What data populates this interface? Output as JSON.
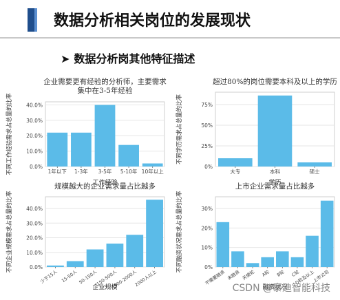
{
  "header": {
    "title": "数据分析相关岗位的发展现状"
  },
  "section": {
    "arrow": "➤",
    "heading": "数据分析岗其他特征描述"
  },
  "watermark": "CSDN @泰迪智能科技",
  "chart_data": [
    {
      "type": "bar",
      "title": "企业需要更有经验的分析师，主要需求集中在3-5年经验",
      "title_lines": [
        "企业需要更有经验的分析师，主要需求",
        "集中在3-5年经验"
      ],
      "xlabel": "工作经验",
      "ylabel": "不同工作经验需求占总量的比率",
      "categories": [
        "1年以下",
        "1-3年",
        "3-5年",
        "5-10年",
        "10年以上"
      ],
      "values": [
        0.22,
        0.22,
        0.4,
        0.14,
        0.02
      ],
      "ylim": [
        0,
        0.42
      ],
      "yticks": [
        0,
        0.1,
        0.2,
        0.3,
        0.4
      ],
      "ytick_labels": [
        "0.0%",
        "10.0%",
        "20.0%",
        "30.0%",
        "40.0%"
      ],
      "color": "#5bbbe8",
      "grid": true,
      "rotate_xticks": false
    },
    {
      "type": "bar",
      "title": "超过80%的岗位需要本科及以上的学历",
      "title_lines": [
        "超过80%的岗位需要本科及以上的学历"
      ],
      "xlabel": "学历",
      "ylabel": "不同学历需求占总量的比率",
      "categories": [
        "大专",
        "本科",
        "硕士"
      ],
      "values": [
        0.1,
        0.86,
        0.05
      ],
      "ylim": [
        0,
        0.9
      ],
      "yticks": [
        0,
        0.25,
        0.5,
        0.75
      ],
      "ytick_labels": [
        "0%",
        "25%",
        "50%",
        "75%"
      ],
      "color": "#5bbbe8",
      "grid": true,
      "rotate_xticks": false
    },
    {
      "type": "bar",
      "title": "规模越大的企业需求量占比越多",
      "title_lines": [
        "规模越大的企业需求量占比越多"
      ],
      "xlabel": "企业规模",
      "ylabel": "不同企业规模需求占总量的比率",
      "categories": [
        "少于15人",
        "15-50人",
        "50-150人",
        "150-500人",
        "500-2000人",
        "2000人以上"
      ],
      "values": [
        0.01,
        0.04,
        0.12,
        0.16,
        0.22,
        0.46
      ],
      "ylim": [
        0,
        0.48
      ],
      "yticks": [
        0,
        0.1,
        0.2,
        0.3,
        0.4
      ],
      "ytick_labels": [
        "0.0%",
        "10.0%",
        "20.0%",
        "30.0%",
        "40.0%"
      ],
      "color": "#5bbbe8",
      "grid": true,
      "rotate_xticks": true
    },
    {
      "type": "bar",
      "title": "上市企业需求量占比越多",
      "title_lines": [
        "上市企业需求量占比越多"
      ],
      "xlabel": "融资状况",
      "ylabel": "不同融资状况需求占总量的比率",
      "categories": [
        "不需要融资",
        "未融资",
        "天使轮",
        "A轮",
        "B轮",
        "C轮",
        "D轮及以上",
        "上市公司"
      ],
      "values": [
        0.23,
        0.08,
        0.02,
        0.05,
        0.08,
        0.05,
        0.16,
        0.34
      ],
      "ylim": [
        0,
        0.36
      ],
      "yticks": [
        0,
        0.1,
        0.2,
        0.3
      ],
      "ytick_labels": [
        "0%",
        "10%",
        "20%",
        "30%"
      ],
      "color": "#5bbbe8",
      "grid": true,
      "rotate_xticks": true
    }
  ]
}
